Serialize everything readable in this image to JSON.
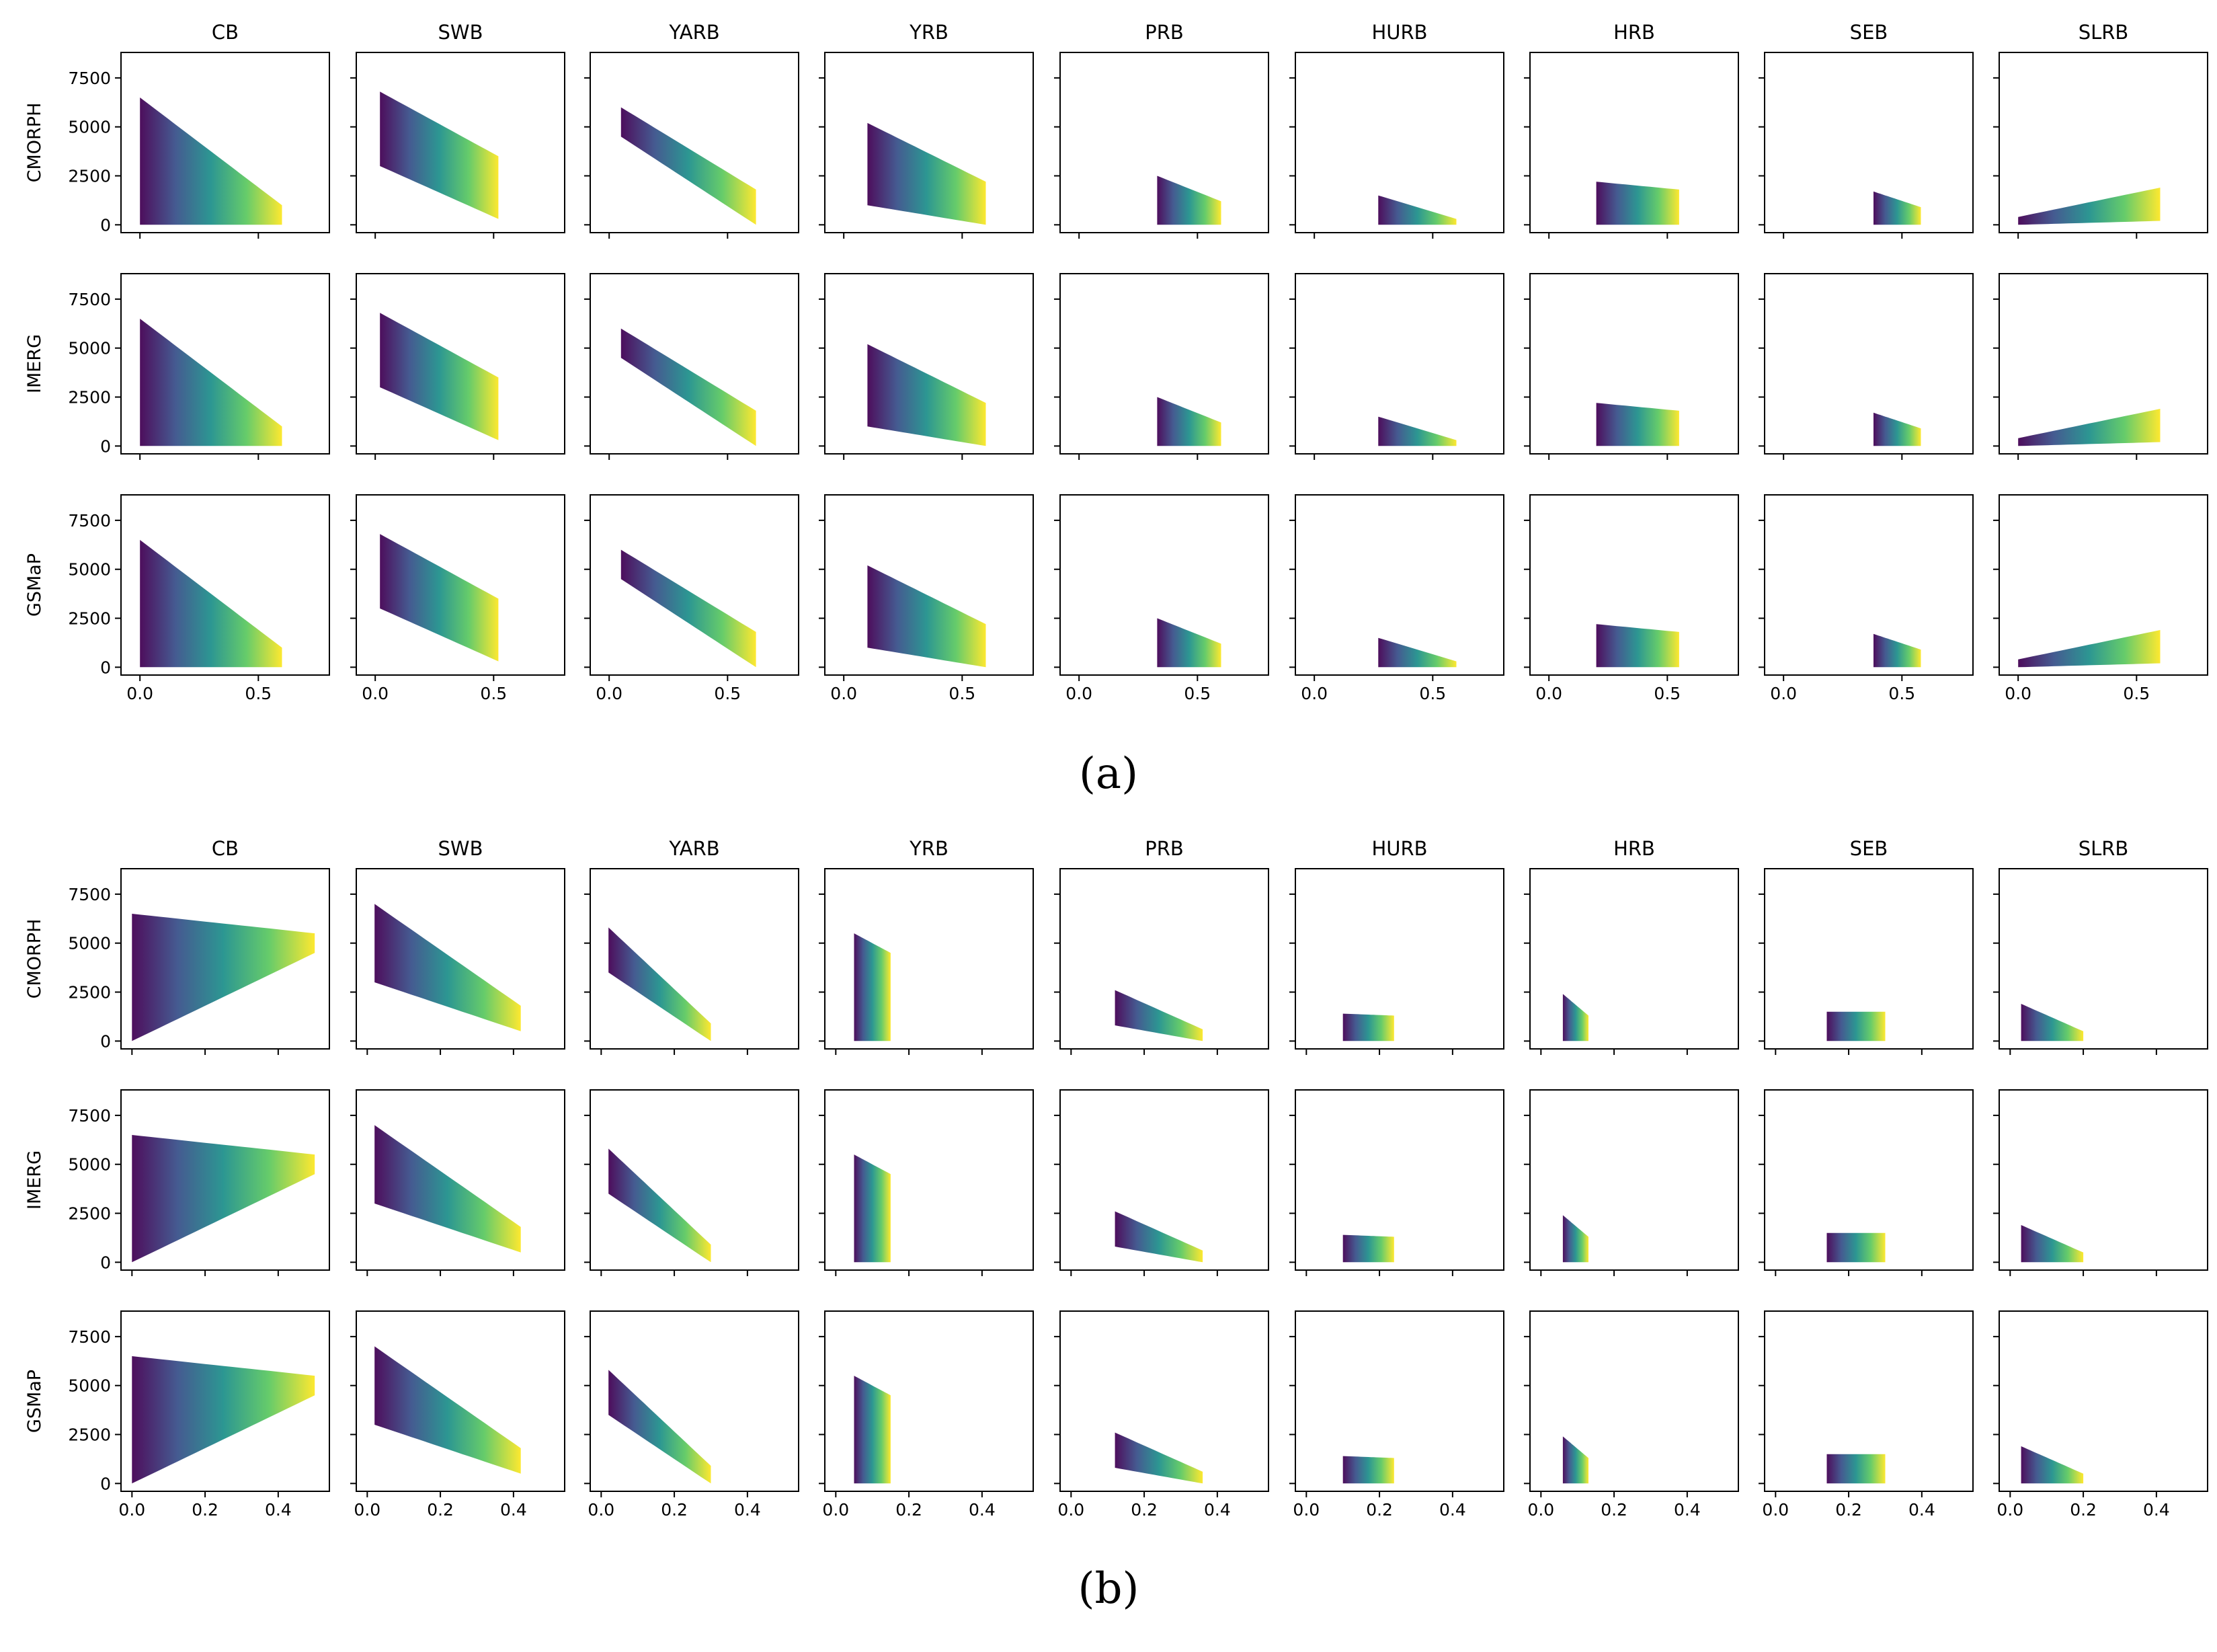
{
  "figure": {
    "basins": [
      "CB",
      "SWB",
      "YARB",
      "YRB",
      "PRB",
      "HURB",
      "HRB",
      "SEB",
      "SLRB"
    ],
    "products": [
      "CMORPH",
      "IMERG",
      "GSMaP"
    ],
    "colormap": [
      "#440154",
      "#3b528b",
      "#21918c",
      "#5ec962",
      "#fde725"
    ]
  },
  "chart_data": [
    {
      "type": "scatter",
      "panel_label": "(a)",
      "xlim": [
        -0.08,
        0.8
      ],
      "xticks": [
        0.0,
        0.5
      ],
      "xtick_labels": [
        "0.0",
        "0.5"
      ],
      "ylim": [
        -400,
        8800
      ],
      "yticks": [
        0,
        2500,
        5000,
        7500
      ],
      "ytick_labels": [
        "0",
        "2500",
        "5000",
        "7500"
      ],
      "titles": [
        "CB",
        "SWB",
        "YARB",
        "YRB",
        "PRB",
        "HURB",
        "HRB",
        "SEB",
        "SLRB"
      ],
      "ylabels": [
        "CMORPH",
        "IMERG",
        "GSMaP"
      ],
      "series": [
        {
          "name": "CB",
          "x": [
            0.0,
            0.6
          ],
          "y_min": [
            0,
            0
          ],
          "y_max": [
            6500,
            1000
          ]
        },
        {
          "name": "SWB",
          "x": [
            0.02,
            0.52
          ],
          "y_min": [
            3000,
            300
          ],
          "y_max": [
            6800,
            3500
          ]
        },
        {
          "name": "YARB",
          "x": [
            0.05,
            0.62
          ],
          "y_min": [
            4500,
            0
          ],
          "y_max": [
            6000,
            1800
          ]
        },
        {
          "name": "YRB",
          "x": [
            0.1,
            0.6
          ],
          "y_min": [
            1000,
            0
          ],
          "y_max": [
            5200,
            2200
          ]
        },
        {
          "name": "PRB",
          "x": [
            0.33,
            0.6
          ],
          "y_min": [
            0,
            0
          ],
          "y_max": [
            2500,
            1200
          ]
        },
        {
          "name": "HURB",
          "x": [
            0.27,
            0.6
          ],
          "y_min": [
            0,
            0
          ],
          "y_max": [
            1500,
            300
          ]
        },
        {
          "name": "HRB",
          "x": [
            0.2,
            0.55
          ],
          "y_min": [
            0,
            0
          ],
          "y_max": [
            2200,
            1800
          ]
        },
        {
          "name": "SEB",
          "x": [
            0.38,
            0.58
          ],
          "y_min": [
            0,
            0
          ],
          "y_max": [
            1700,
            900
          ]
        },
        {
          "name": "SLRB",
          "x": [
            0.0,
            0.6
          ],
          "y_min": [
            0,
            200
          ],
          "y_max": [
            400,
            1900
          ]
        }
      ]
    },
    {
      "type": "scatter",
      "panel_label": "(b)",
      "xlim": [
        -0.03,
        0.54
      ],
      "xticks": [
        0.0,
        0.2,
        0.4
      ],
      "xtick_labels": [
        "0.0",
        "0.2",
        "0.4"
      ],
      "ylim": [
        -400,
        8800
      ],
      "yticks": [
        0,
        2500,
        5000,
        7500
      ],
      "ytick_labels": [
        "0",
        "2500",
        "5000",
        "7500"
      ],
      "titles": [
        "CB",
        "SWB",
        "YARB",
        "YRB",
        "PRB",
        "HURB",
        "HRB",
        "SEB",
        "SLRB"
      ],
      "ylabels": [
        "CMORPH",
        "IMERG",
        "GSMaP"
      ],
      "series": [
        {
          "name": "CB",
          "x": [
            0.0,
            0.5
          ],
          "y_min": [
            0,
            4500
          ],
          "y_max": [
            6500,
            5500
          ]
        },
        {
          "name": "SWB",
          "x": [
            0.02,
            0.42
          ],
          "y_min": [
            3000,
            500
          ],
          "y_max": [
            7000,
            1800
          ]
        },
        {
          "name": "YARB",
          "x": [
            0.02,
            0.3
          ],
          "y_min": [
            3500,
            0
          ],
          "y_max": [
            5800,
            900
          ]
        },
        {
          "name": "YRB",
          "x": [
            0.05,
            0.15
          ],
          "y_min": [
            0,
            0
          ],
          "y_max": [
            5500,
            4500
          ]
        },
        {
          "name": "PRB",
          "x": [
            0.12,
            0.36
          ],
          "y_min": [
            800,
            0
          ],
          "y_max": [
            2600,
            600
          ]
        },
        {
          "name": "HURB",
          "x": [
            0.1,
            0.24
          ],
          "y_min": [
            0,
            0
          ],
          "y_max": [
            1400,
            1300
          ]
        },
        {
          "name": "HRB",
          "x": [
            0.06,
            0.13
          ],
          "y_min": [
            0,
            0
          ],
          "y_max": [
            2400,
            1300
          ]
        },
        {
          "name": "SEB",
          "x": [
            0.14,
            0.3
          ],
          "y_min": [
            0,
            0
          ],
          "y_max": [
            1500,
            1500
          ]
        },
        {
          "name": "SLRB",
          "x": [
            0.03,
            0.2
          ],
          "y_min": [
            0,
            0
          ],
          "y_max": [
            1900,
            500
          ]
        }
      ]
    }
  ]
}
